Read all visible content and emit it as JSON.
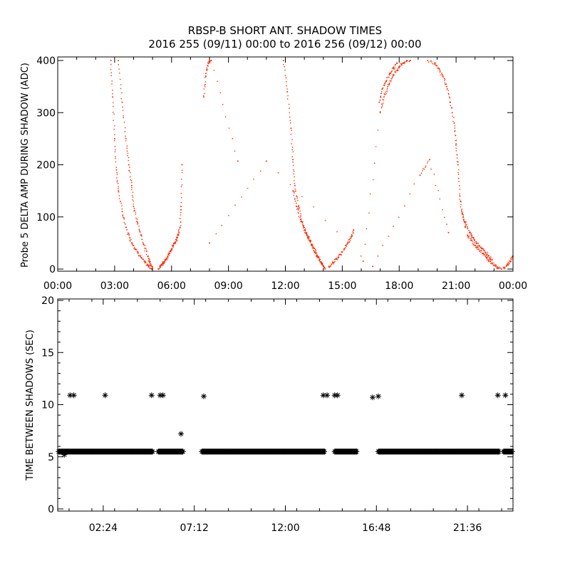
{
  "title_line1": "RBSP-B SHORT ANT. SHADOW TIMES",
  "title_line2": "2016 255 (09/11) 00:00 to 2016 256 (09/12) 00:00",
  "colors": {
    "points_top": "#ff2a00",
    "points_bottom": "#000000",
    "axes": "#000000",
    "background": "#ffffff"
  },
  "chart_data": [
    {
      "type": "scatter",
      "ylabel": "Probe 5 DELTA AMP DURING SHADOW (ADC)",
      "xlabel": "",
      "xlim": [
        0,
        24
      ],
      "ylim": [
        0,
        400
      ],
      "x_ticks": [
        0,
        3,
        6,
        9,
        12,
        15,
        18,
        21,
        24
      ],
      "x_tick_labels": [
        "00:00",
        "03:00",
        "06:00",
        "09:00",
        "12:00",
        "15:00",
        "18:00",
        "21:00",
        "00:00"
      ],
      "y_ticks": [
        0,
        100,
        200,
        300,
        400
      ],
      "y_tick_labels": [
        "0",
        "100",
        "200",
        "300",
        "400"
      ],
      "grid": false,
      "marker": "dot",
      "series": [
        {
          "points": [
            [
              2.8,
              400
            ],
            [
              2.9,
              330
            ],
            [
              3.0,
              250
            ],
            [
              3.1,
              190
            ],
            [
              3.2,
              150
            ],
            [
              3.4,
              110
            ],
            [
              3.6,
              80
            ],
            [
              3.8,
              60
            ],
            [
              4.0,
              45
            ],
            [
              4.2,
              33
            ],
            [
              4.4,
              22
            ],
            [
              4.6,
              12
            ],
            [
              4.8,
              5
            ],
            [
              4.95,
              0
            ]
          ]
        },
        {
          "points": [
            [
              3.2,
              400
            ],
            [
              3.4,
              320
            ],
            [
              3.6,
              250
            ],
            [
              3.75,
              200
            ],
            [
              3.9,
              160
            ],
            [
              4.0,
              120
            ],
            [
              4.2,
              90
            ],
            [
              4.4,
              65
            ],
            [
              4.6,
              40
            ],
            [
              4.8,
              20
            ],
            [
              4.9,
              10
            ],
            [
              5.0,
              2
            ]
          ]
        },
        {
          "points": [
            [
              5.3,
              0
            ],
            [
              5.5,
              8
            ],
            [
              5.7,
              18
            ],
            [
              5.9,
              30
            ],
            [
              6.1,
              45
            ],
            [
              6.3,
              60
            ],
            [
              6.45,
              80
            ],
            [
              6.5,
              120
            ],
            [
              6.55,
              200
            ]
          ]
        },
        {
          "points": [
            [
              5.4,
              5
            ],
            [
              5.6,
              14
            ],
            [
              5.8,
              25
            ],
            [
              6.0,
              38
            ],
            [
              6.2,
              52
            ],
            [
              6.4,
              70
            ]
          ]
        },
        {
          "points": [
            [
              7.7,
              330
            ],
            [
              7.8,
              370
            ],
            [
              7.9,
              390
            ],
            [
              8.0,
              400
            ],
            [
              8.1,
              400
            ],
            [
              9.5,
              207
            ]
          ]
        },
        {
          "points": [
            [
              11.9,
              400
            ],
            [
              12.1,
              340
            ],
            [
              12.3,
              270
            ],
            [
              12.4,
              210
            ],
            [
              12.5,
              160
            ],
            [
              12.7,
              120
            ],
            [
              12.9,
              90
            ],
            [
              13.1,
              70
            ],
            [
              13.3,
              55
            ],
            [
              13.5,
              40
            ],
            [
              13.7,
              25
            ],
            [
              13.9,
              12
            ],
            [
              14.0,
              5
            ],
            [
              14.1,
              0
            ]
          ]
        },
        {
          "points": [
            [
              12.4,
              150
            ],
            [
              12.6,
              120
            ],
            [
              12.8,
              95
            ],
            [
              13.0,
              75
            ],
            [
              13.2,
              60
            ],
            [
              13.4,
              45
            ],
            [
              13.6,
              30
            ],
            [
              13.8,
              18
            ],
            [
              13.95,
              8
            ]
          ]
        },
        {
          "points": [
            [
              14.3,
              5
            ],
            [
              14.5,
              12
            ],
            [
              14.7,
              20
            ],
            [
              14.9,
              28
            ],
            [
              15.1,
              38
            ],
            [
              15.3,
              50
            ],
            [
              15.5,
              62
            ],
            [
              15.6,
              75
            ]
          ]
        },
        {
          "points": [
            [
              16.1,
              15
            ],
            [
              17.0,
              300
            ],
            [
              17.2,
              330
            ],
            [
              17.4,
              350
            ],
            [
              17.6,
              365
            ],
            [
              17.8,
              378
            ],
            [
              18.0,
              388
            ],
            [
              18.2,
              395
            ],
            [
              18.4,
              400
            ],
            [
              18.6,
              400
            ]
          ]
        },
        {
          "points": [
            [
              16.95,
              320
            ],
            [
              17.1,
              345
            ],
            [
              17.3,
              360
            ],
            [
              17.5,
              375
            ],
            [
              17.7,
              385
            ],
            [
              17.9,
              395
            ]
          ]
        },
        {
          "points": [
            [
              18.5,
              410
            ],
            [
              19.5,
              400
            ],
            [
              19.9,
              395
            ],
            [
              20.1,
              385
            ],
            [
              20.3,
              370
            ],
            [
              20.5,
              350
            ],
            [
              20.7,
              320
            ],
            [
              20.9,
              280
            ],
            [
              21.0,
              240
            ],
            [
              21.1,
              200
            ],
            [
              21.2,
              140
            ],
            [
              21.3,
              110
            ],
            [
              21.4,
              95
            ],
            [
              21.5,
              80
            ]
          ]
        },
        {
          "points": [
            [
              21.6,
              65
            ],
            [
              21.8,
              55
            ],
            [
              22.0,
              45
            ],
            [
              22.2,
              38
            ],
            [
              22.4,
              30
            ],
            [
              22.6,
              22
            ],
            [
              22.8,
              15
            ],
            [
              23.0,
              8
            ],
            [
              23.2,
              3
            ],
            [
              23.4,
              0
            ]
          ]
        },
        {
          "points": [
            [
              21.5,
              90
            ],
            [
              21.7,
              70
            ],
            [
              21.9,
              60
            ],
            [
              22.1,
              50
            ],
            [
              22.3,
              42
            ],
            [
              22.5,
              35
            ],
            [
              22.7,
              26
            ],
            [
              22.9,
              18
            ]
          ]
        },
        {
          "points": [
            [
              23.5,
              2
            ],
            [
              23.7,
              8
            ],
            [
              23.85,
              15
            ],
            [
              24.0,
              25
            ]
          ]
        },
        {
          "points": [
            [
              8.0,
              50
            ],
            [
              11.0,
              207
            ],
            [
              16.6,
              5
            ],
            [
              19.1,
              180
            ],
            [
              19.6,
              210
            ],
            [
              20.6,
              70
            ]
          ]
        }
      ]
    },
    {
      "type": "scatter",
      "ylabel": "TIME BETWEEN SHADOWS (SEC)",
      "xlabel": "",
      "xlim": [
        0,
        24
      ],
      "ylim": [
        0,
        20
      ],
      "x_ticks": [
        2.4,
        7.2,
        12.0,
        16.8,
        21.6
      ],
      "x_tick_labels": [
        "02:24",
        "07:12",
        "12:00",
        "16:48",
        "21:36"
      ],
      "y_ticks": [
        0,
        5,
        10,
        15,
        20
      ],
      "y_tick_labels": [
        "0",
        "5",
        "10",
        "15",
        "20"
      ],
      "grid": false,
      "marker": "asterisk",
      "baseline_value": 5.5,
      "baseline_segments": [
        [
          0.05,
          5.0
        ],
        [
          5.3,
          6.6
        ],
        [
          7.6,
          14.1
        ],
        [
          14.6,
          15.8
        ],
        [
          16.9,
          23.3
        ],
        [
          23.5,
          24.0
        ]
      ],
      "points": [
        [
          0.65,
          10.9
        ],
        [
          0.85,
          10.9
        ],
        [
          2.5,
          10.9
        ],
        [
          4.95,
          10.9
        ],
        [
          5.4,
          10.9
        ],
        [
          5.55,
          10.9
        ],
        [
          6.5,
          7.2
        ],
        [
          7.7,
          10.8
        ],
        [
          14.0,
          10.9
        ],
        [
          14.2,
          10.9
        ],
        [
          14.6,
          10.9
        ],
        [
          14.75,
          10.9
        ],
        [
          16.6,
          10.7
        ],
        [
          16.9,
          10.8
        ],
        [
          21.3,
          10.9
        ],
        [
          23.2,
          10.9
        ],
        [
          23.6,
          10.9
        ],
        [
          0.35,
          5.2
        ]
      ]
    }
  ]
}
